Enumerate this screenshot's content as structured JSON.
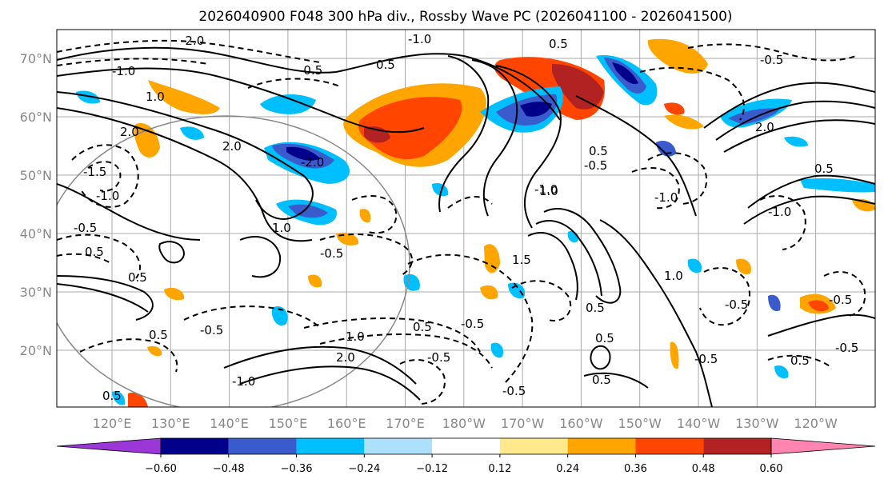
{
  "title": "2026040900 F048 300 hPa div., Rossby Wave PC (2026041100 - 2026041500)",
  "map": {
    "lat_labels": [
      "70°N",
      "60°N",
      "50°N",
      "40°N",
      "30°N",
      "20°N"
    ],
    "lon_labels": [
      "120°E",
      "130°E",
      "140°E",
      "150°E",
      "160°E",
      "170°E",
      "180°W",
      "170°W",
      "160°W",
      "150°W",
      "140°W",
      "130°W",
      "120°W"
    ],
    "contour_labels": [
      "-1.0",
      "-2.0",
      "-0.5",
      "0.5",
      "1.0",
      "2.0",
      "-2.0",
      "-0.5",
      "0.5",
      "-1.0",
      "1.0",
      "-0.5",
      "0.5",
      "-1.5",
      "-0.5",
      "1.0",
      "0.5",
      "-0.5",
      "0.5",
      "-1.0",
      "2.0",
      "1.5",
      "0.5",
      "-0.5",
      "-0.5",
      "0.5",
      "-1.0",
      "-0.5",
      "0.5",
      "-0.5",
      "1.0",
      "-1.0",
      "0.5",
      "-1.0",
      "2.0",
      "-0.5",
      "2.0",
      "-1.0",
      "0.5",
      "-0.5",
      "0.5",
      "0.5",
      "-0.5",
      "-0.5",
      "1.0",
      "0.5"
    ]
  },
  "colorbar": {
    "ticks": [
      "−0.60",
      "−0.48",
      "−0.36",
      "−0.24",
      "−0.12",
      "0.12",
      "0.24",
      "0.36",
      "0.48",
      "0.60"
    ],
    "colors": [
      "#9a37d6",
      "#00008b",
      "#3a5bcc",
      "#00bfff",
      "#ade0fb",
      "#ffffff",
      "#ffe98c",
      "#ffa500",
      "#ff4500",
      "#b22222",
      "#ff85b0"
    ]
  }
}
